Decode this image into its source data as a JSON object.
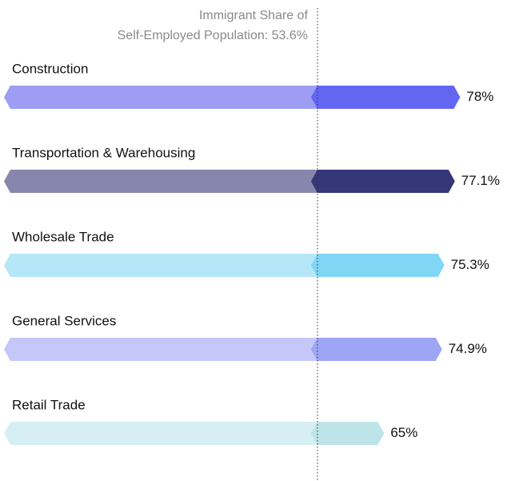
{
  "chart_data": {
    "type": "bar",
    "orientation": "horizontal",
    "reference_label": [
      "Immigrant Share of",
      "Self-Employed Population: 53.6%"
    ],
    "reference_value": 53.6,
    "categories": [
      "Construction",
      "Transportation & Warehousing",
      "Wholesale Trade",
      "General Services",
      "Retail Trade"
    ],
    "values": [
      78,
      77.1,
      75.3,
      74.9,
      65
    ],
    "value_labels": [
      "78%",
      "77.1%",
      "75.3%",
      "74.9%",
      "65%"
    ],
    "colors": [
      [
        "#9c9df3",
        "#6366f1"
      ],
      [
        "#8786ad",
        "#363776"
      ],
      [
        "#b6e7f8",
        "#80d7f5"
      ],
      [
        "#c4c7f8",
        "#9ea5f5"
      ],
      [
        "#d6eff4",
        "#bde4e9"
      ]
    ],
    "xlim": [
      0,
      80
    ]
  }
}
